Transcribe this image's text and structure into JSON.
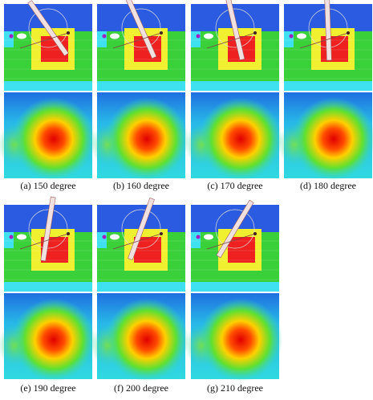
{
  "panels": [
    {
      "caption": "(a) 150 degree"
    },
    {
      "caption": "(b) 160 degree"
    },
    {
      "caption": "(c) 170 degree"
    },
    {
      "caption": "(d) 180 degree"
    },
    {
      "caption": "(e) 190 degree"
    },
    {
      "caption": "(f) 200 degree"
    },
    {
      "caption": "(g) 210 degree"
    }
  ]
}
